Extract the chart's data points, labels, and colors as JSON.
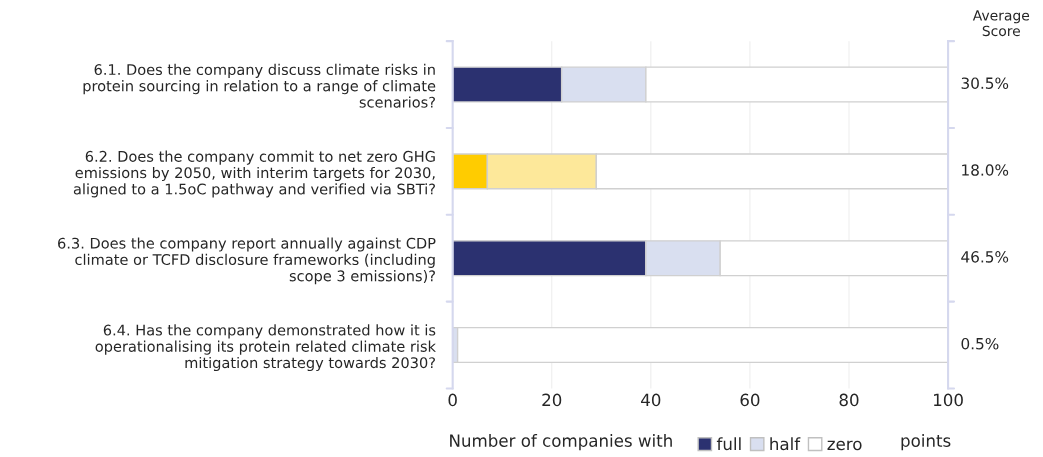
{
  "chart_data": {
    "type": "bar",
    "orientation": "horizontal",
    "stacked": true,
    "categories": [
      "6.1. Does the company discuss climate risks in\nprotein sourcing in relation to a range of climate\nscenarios?",
      "6.2. Does the company commit to net zero GHG\nemissions by 2050, with interim targets for 2030,\naligned to a 1.5oC pathway and verified via SBTi?",
      "6.3. Does the company report annually against CDP\nclimate or TCFD disclosure frameworks (including\nscope 3 emissions)?",
      "6.4. Has the company demonstrated how it is\noperationalising its protein related climate risk\nmitigation strategy towards 2030?"
    ],
    "series": [
      {
        "name": "full",
        "color": "#2b3170",
        "colors": [
          "#2b3170",
          "#ffcc00",
          "#2b3170",
          "#2b3170"
        ],
        "values": [
          22,
          7,
          39,
          0
        ]
      },
      {
        "name": "half",
        "color": "#d9dff0",
        "colors": [
          "#d9dff0",
          "#fde89a",
          "#d9dff0",
          "#d9dff0"
        ],
        "values": [
          17,
          22,
          15,
          1
        ]
      },
      {
        "name": "zero",
        "color": "#ffffff",
        "values": [
          61,
          71,
          46,
          99
        ]
      }
    ],
    "xlabel": "Number of companies with",
    "xlim": [
      0,
      100
    ],
    "xticks": [
      0,
      20,
      40,
      60,
      80,
      100
    ],
    "grid": "x",
    "legend": "bottom",
    "annotations": [
      "Average\nScore",
      "30.5%",
      "18.0%",
      "46.5%",
      "0.5%",
      "points"
    ]
  }
}
